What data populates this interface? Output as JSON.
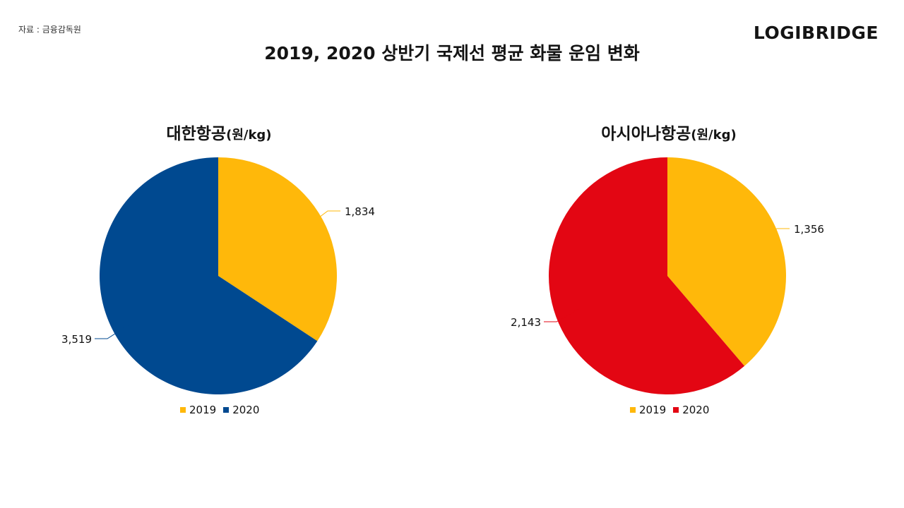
{
  "source": "자료 : 금융감독원",
  "logo": "LOGIBRIDGE",
  "title": "2019, 2020 상반기 국제선 평균 화물 운임 변화",
  "colors": {
    "y2019": "#FFB80A",
    "korean_2020": "#004990",
    "asiana_2020": "#E30613"
  },
  "chart_data": [
    {
      "type": "pie",
      "title": "대한항공",
      "unit": "(원/kg)",
      "categories": [
        "2019",
        "2020"
      ],
      "values": [
        1834,
        3519
      ],
      "labels": [
        "1,834",
        "3,519"
      ],
      "colors": [
        "#FFB80A",
        "#004990"
      ],
      "legend_position": "bottom"
    },
    {
      "type": "pie",
      "title": "아시아나항공",
      "unit": "(원/kg)",
      "categories": [
        "2019",
        "2020"
      ],
      "values": [
        1356,
        2143
      ],
      "labels": [
        "1,356",
        "2,143"
      ],
      "colors": [
        "#FFB80A",
        "#E30613"
      ],
      "legend_position": "bottom"
    }
  ]
}
